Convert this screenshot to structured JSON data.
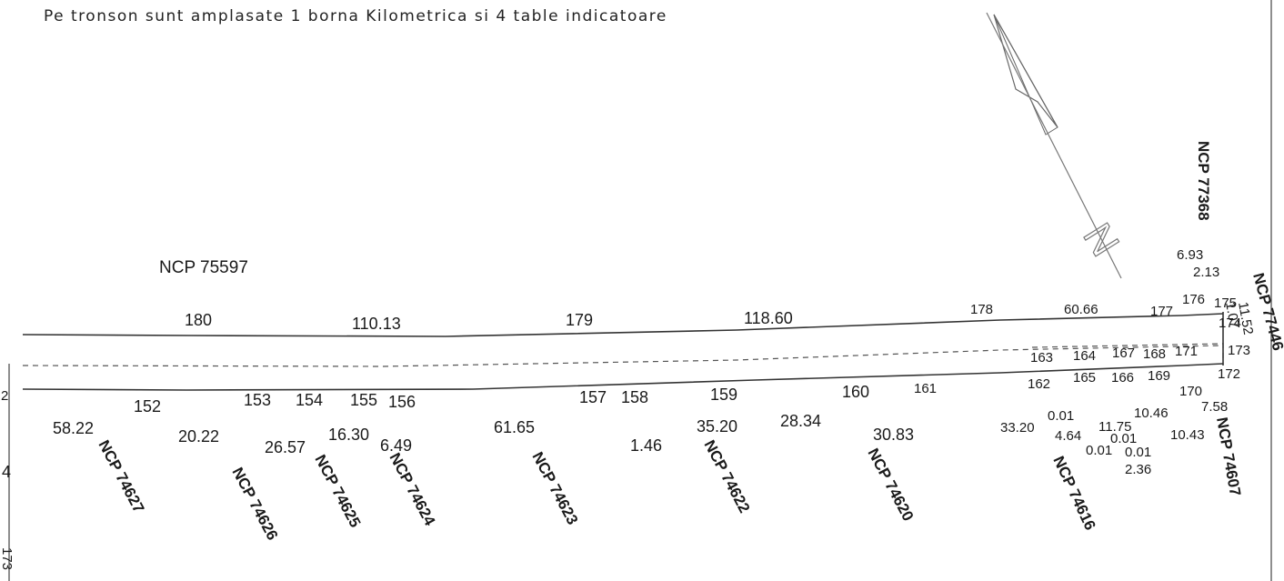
{
  "header": {
    "note": "Pe tronson sunt amplasate 1 borna Kilometrica si 4 table indicatoare"
  },
  "north_symbol": {
    "letter": "N"
  },
  "parcels": {
    "top": "NCP 75597",
    "right_top": "NCP 77368",
    "right_end": "NCP 77446",
    "bottom": [
      "NCP 74627",
      "NCP 74626",
      "NCP 74625",
      "NCP 74624",
      "NCP 74623",
      "NCP 74622",
      "NCP 74620",
      "NCP 74616",
      "NCP 74607"
    ]
  },
  "upper_points": [
    "180",
    "179",
    "178",
    "177",
    "176",
    "175",
    "174",
    "173"
  ],
  "upper_distances": [
    "110.13",
    "118.60",
    "60.66",
    "6.93",
    "2.13",
    "1.07",
    "11.52"
  ],
  "middle_points": [
    "163",
    "164",
    "167",
    "168",
    "171",
    "172",
    "162",
    "165",
    "166",
    "169",
    "170"
  ],
  "lower_points": [
    "152",
    "153",
    "154",
    "155",
    "156",
    "157",
    "158",
    "159",
    "160",
    "161"
  ],
  "lower_distances": [
    "58.22",
    "20.22",
    "26.57",
    "16.30",
    "6.49",
    "61.65",
    "1.46",
    "35.20",
    "28.34",
    "30.83",
    "33.20",
    "0.01",
    "4.64",
    "11.75",
    "0.01",
    "0.01",
    "0.01",
    "2.36",
    "10.46",
    "10.43",
    "7.58"
  ],
  "edge_fragments": [
    "4",
    "173",
    "2"
  ]
}
